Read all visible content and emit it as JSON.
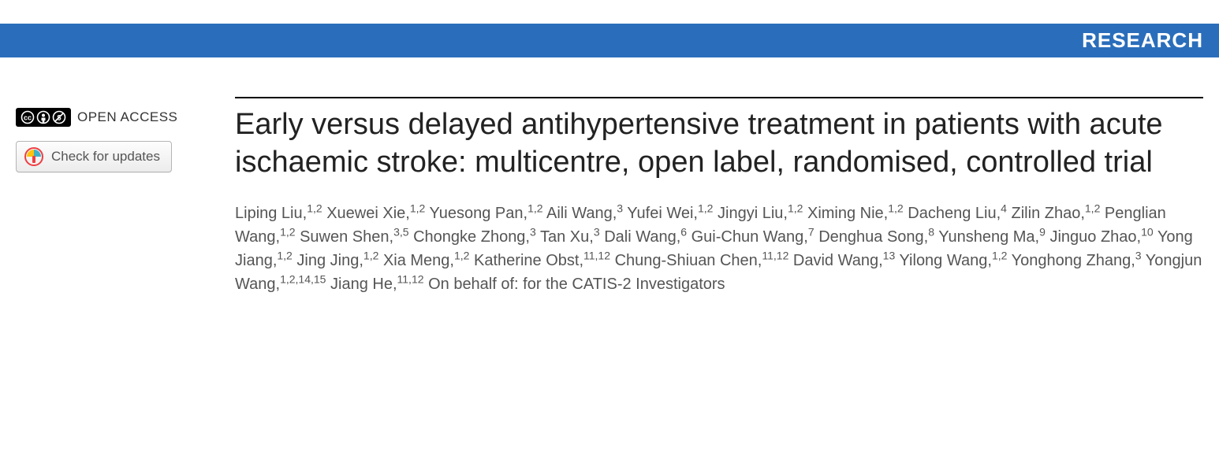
{
  "banner": {
    "label": "RESEARCH",
    "bg": "#2a6ebb",
    "fg": "#ffffff"
  },
  "sidebar": {
    "open_access_label": "OPEN ACCESS",
    "updates_label": "Check for updates"
  },
  "article": {
    "title": "Early versus delayed antihypertensive treatment in patients with acute ischaemic stroke: multicentre, open label, randomised, controlled trial",
    "authors": [
      {
        "name": "Liping Liu",
        "affil": "1,2"
      },
      {
        "name": "Xuewei Xie",
        "affil": "1,2"
      },
      {
        "name": "Yuesong Pan",
        "affil": "1,2"
      },
      {
        "name": "Aili Wang",
        "affil": "3"
      },
      {
        "name": "Yufei Wei",
        "affil": "1,2"
      },
      {
        "name": "Jingyi Liu",
        "affil": "1,2"
      },
      {
        "name": "Ximing Nie",
        "affil": "1,2"
      },
      {
        "name": "Dacheng Liu",
        "affil": "4"
      },
      {
        "name": "Zilin Zhao",
        "affil": "1,2"
      },
      {
        "name": "Penglian Wang",
        "affil": "1,2"
      },
      {
        "name": "Suwen Shen",
        "affil": "3,5"
      },
      {
        "name": "Chongke Zhong",
        "affil": "3"
      },
      {
        "name": "Tan Xu",
        "affil": "3"
      },
      {
        "name": "Dali Wang",
        "affil": "6"
      },
      {
        "name": "Gui-Chun Wang",
        "affil": "7"
      },
      {
        "name": "Denghua Song",
        "affil": "8"
      },
      {
        "name": "Yunsheng Ma",
        "affil": "9"
      },
      {
        "name": "Jinguo Zhao",
        "affil": "10"
      },
      {
        "name": "Yong Jiang",
        "affil": "1,2"
      },
      {
        "name": "Jing Jing",
        "affil": "1,2"
      },
      {
        "name": "Xia Meng",
        "affil": "1,2"
      },
      {
        "name": "Katherine Obst",
        "affil": "11,12"
      },
      {
        "name": "Chung-Shiuan Chen",
        "affil": "11,12"
      },
      {
        "name": "David Wang",
        "affil": "13"
      },
      {
        "name": "Yilong Wang",
        "affil": "1,2"
      },
      {
        "name": "Yonghong Zhang",
        "affil": "3"
      },
      {
        "name": "Yongjun Wang",
        "affil": "1,2,14,15"
      },
      {
        "name": "Jiang He",
        "affil": "11,12"
      }
    ],
    "author_suffix": "On behalf of: for the CATIS-2 Investigators"
  },
  "colors": {
    "banner_bg": "#2a6ebb",
    "banner_fg": "#ffffff",
    "title_fg": "#222222",
    "author_fg": "#555555",
    "rule": "#000000",
    "crossmark_outer": "#ef3e42",
    "crossmark_left": "#ffc20e",
    "crossmark_right": "#3eb1c8"
  }
}
